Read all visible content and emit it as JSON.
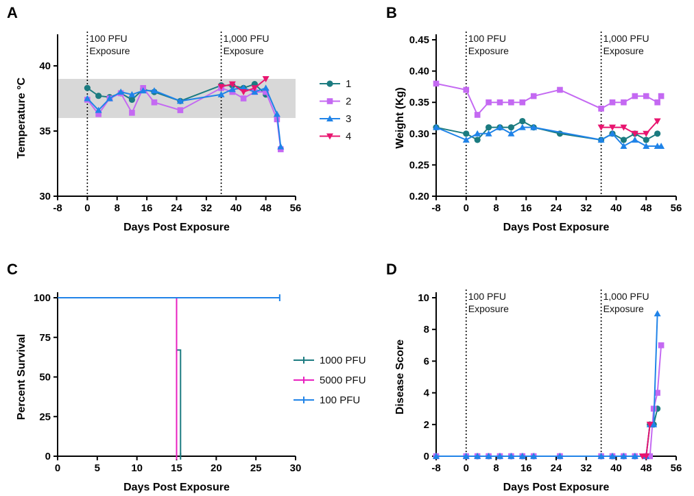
{
  "colors": {
    "s1": "#1b7b80",
    "s2": "#c469f2",
    "s3": "#1f83e8",
    "s4": "#e8156f",
    "band": "#d8d8d8",
    "pfu1000": "#1b7b80",
    "pfu5000": "#e81fbf",
    "pfu100": "#1f83e8"
  },
  "chart_data": [
    {
      "panel": "A",
      "type": "line",
      "xlabel": "Days Post Exposure",
      "ylabel": "Temperature °C",
      "xlim": [
        -8,
        56
      ],
      "ylim": [
        30,
        42
      ],
      "xticks": [
        "-8",
        "0",
        "8",
        "16",
        "24",
        "32",
        "40",
        "48",
        "56"
      ],
      "yticks": [
        "30",
        "35",
        "40"
      ],
      "band": [
        36,
        39
      ],
      "annotations": [
        {
          "x": 0,
          "lines": [
            "100 PFU",
            "Exposure"
          ]
        },
        {
          "x": 36,
          "lines": [
            "1,000 PFU",
            "Exposure"
          ]
        }
      ],
      "legend": [
        "1",
        "2",
        "3",
        "4"
      ],
      "legend_position": "right",
      "series": [
        {
          "name": "1",
          "marker": "circle",
          "x": [
            0,
            3,
            6,
            9,
            12,
            15,
            18,
            25,
            36,
            39,
            42,
            45,
            48
          ],
          "y": [
            38.3,
            37.7,
            37.6,
            37.9,
            37.4,
            38.2,
            38.0,
            37.3,
            38.5,
            38.5,
            38.3,
            38.6,
            37.8
          ]
        },
        {
          "name": "2",
          "marker": "square",
          "x": [
            0,
            3,
            6,
            9,
            12,
            15,
            18,
            25,
            36,
            39,
            42,
            45,
            48,
            51,
            52
          ],
          "y": [
            37.4,
            36.3,
            37.5,
            37.9,
            36.4,
            38.3,
            37.2,
            36.6,
            38.3,
            38.0,
            37.5,
            38.0,
            38.0,
            35.9,
            33.6
          ]
        },
        {
          "name": "3",
          "marker": "triangle-up",
          "x": [
            0,
            3,
            6,
            9,
            12,
            15,
            18,
            25,
            36,
            39,
            42,
            45,
            48,
            51,
            52
          ],
          "y": [
            37.5,
            36.6,
            37.5,
            38.0,
            37.8,
            38.1,
            38.1,
            37.3,
            37.8,
            38.2,
            38.3,
            38.0,
            38.3,
            36.3,
            33.8
          ]
        },
        {
          "name": "4",
          "marker": "triangle-down",
          "x": [
            36,
            39,
            42,
            45,
            48
          ],
          "y": [
            38.4,
            38.6,
            38.0,
            38.3,
            39.0
          ]
        }
      ]
    },
    {
      "panel": "B",
      "type": "line",
      "xlabel": "Days Post Exposure",
      "ylabel": "Weight (Kg)",
      "xlim": [
        -8,
        56
      ],
      "ylim": [
        0.2,
        0.45
      ],
      "xticks": [
        "-8",
        "0",
        "8",
        "16",
        "24",
        "32",
        "40",
        "48",
        "56"
      ],
      "yticks": [
        "0.20",
        "0.25",
        "0.30",
        "0.35",
        "0.40",
        "0.45"
      ],
      "annotations": [
        {
          "x": 0,
          "lines": [
            "100 PFU",
            "Exposure"
          ]
        },
        {
          "x": 36,
          "lines": [
            "1,000 PFU",
            "Exposure"
          ]
        }
      ],
      "series": [
        {
          "name": "1",
          "marker": "circle",
          "x": [
            -8,
            0,
            3,
            6,
            9,
            12,
            15,
            18,
            25,
            36,
            39,
            42,
            45,
            48,
            51
          ],
          "y": [
            0.31,
            0.3,
            0.29,
            0.31,
            0.31,
            0.31,
            0.32,
            0.31,
            0.3,
            0.29,
            0.3,
            0.29,
            0.3,
            0.29,
            0.3
          ]
        },
        {
          "name": "2",
          "marker": "square",
          "x": [
            -8,
            0,
            3,
            6,
            9,
            12,
            15,
            18,
            25,
            36,
            39,
            42,
            45,
            48,
            51,
            52
          ],
          "y": [
            0.38,
            0.37,
            0.33,
            0.35,
            0.35,
            0.35,
            0.35,
            0.36,
            0.37,
            0.34,
            0.35,
            0.35,
            0.36,
            0.36,
            0.35,
            0.36
          ]
        },
        {
          "name": "3",
          "marker": "triangle-up",
          "x": [
            -8,
            0,
            3,
            6,
            9,
            12,
            15,
            18,
            36,
            39,
            42,
            45,
            48,
            51,
            52
          ],
          "y": [
            0.31,
            0.29,
            0.3,
            0.3,
            0.31,
            0.3,
            0.31,
            0.31,
            0.29,
            0.3,
            0.28,
            0.29,
            0.28,
            0.28,
            0.28
          ]
        },
        {
          "name": "4",
          "marker": "triangle-down",
          "x": [
            36,
            39,
            42,
            45,
            48,
            51
          ],
          "y": [
            0.31,
            0.31,
            0.31,
            0.3,
            0.3,
            0.32
          ]
        }
      ]
    },
    {
      "panel": "C",
      "type": "line",
      "step": true,
      "xlabel": "Days Post Exposure",
      "ylabel": "Percent Survival",
      "xlim": [
        0,
        30
      ],
      "ylim": [
        0,
        100
      ],
      "xticks": [
        "0",
        "5",
        "10",
        "15",
        "20",
        "25",
        "30"
      ],
      "yticks": [
        "0",
        "25",
        "50",
        "75",
        "100"
      ],
      "legend": [
        "1000 PFU",
        "5000 PFU",
        "100 PFU"
      ],
      "legend_position": "right",
      "series": [
        {
          "name": "1000 PFU",
          "x": [
            0,
            15,
            15,
            15.5,
            15.5
          ],
          "y": [
            100,
            100,
            67,
            67,
            0
          ]
        },
        {
          "name": "5000 PFU",
          "x": [
            0,
            15,
            15
          ],
          "y": [
            100,
            100,
            0
          ]
        },
        {
          "name": "100 PFU",
          "x": [
            0,
            28
          ],
          "y": [
            100,
            100
          ]
        }
      ]
    },
    {
      "panel": "D",
      "type": "line",
      "xlabel": "Days Post Exposure",
      "ylabel": "Disease Score",
      "xlim": [
        -8,
        56
      ],
      "ylim": [
        0,
        10
      ],
      "xticks": [
        "-8",
        "0",
        "8",
        "16",
        "24",
        "32",
        "40",
        "48",
        "56"
      ],
      "yticks": [
        "0",
        "2",
        "4",
        "6",
        "8",
        "10"
      ],
      "annotations": [
        {
          "x": 0,
          "lines": [
            "100 PFU",
            "Exposure"
          ]
        },
        {
          "x": 36,
          "lines": [
            "1,000 PFU",
            "Exposure"
          ]
        }
      ],
      "series": [
        {
          "name": "1",
          "marker": "circle",
          "x": [
            -8,
            0,
            3,
            6,
            9,
            12,
            15,
            18,
            25,
            36,
            39,
            42,
            45,
            48,
            49,
            50,
            51
          ],
          "y": [
            0,
            0,
            0,
            0,
            0,
            0,
            0,
            0,
            0,
            0,
            0,
            0,
            0,
            0,
            2,
            2,
            3
          ]
        },
        {
          "name": "2",
          "marker": "square",
          "x": [
            -8,
            0,
            3,
            6,
            9,
            12,
            15,
            18,
            25,
            36,
            39,
            42,
            45,
            48,
            49,
            50,
            51,
            52
          ],
          "y": [
            0,
            0,
            0,
            0,
            0,
            0,
            0,
            0,
            0,
            0,
            0,
            0,
            0,
            0,
            0,
            3,
            4,
            7
          ]
        },
        {
          "name": "3",
          "marker": "triangle-up",
          "x": [
            -8,
            0,
            3,
            6,
            9,
            12,
            15,
            18,
            25,
            36,
            39,
            42,
            45,
            48,
            49,
            50,
            51
          ],
          "y": [
            0,
            0,
            0,
            0,
            0,
            0,
            0,
            0,
            0,
            0,
            0,
            0,
            0,
            0,
            2,
            2,
            9
          ]
        },
        {
          "name": "4",
          "marker": "triangle-down",
          "x": [
            47,
            48,
            49
          ],
          "y": [
            0,
            0,
            2
          ]
        }
      ]
    }
  ]
}
